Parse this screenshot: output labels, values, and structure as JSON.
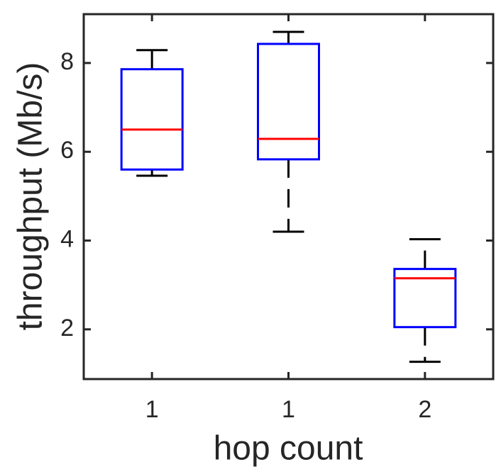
{
  "chart_data": {
    "type": "box",
    "xlabel": "hop count",
    "ylabel": "throughput (Mb/s)",
    "categories": [
      "1",
      "1",
      "2"
    ],
    "boxes": [
      {
        "min": 5.46,
        "q1": 5.6,
        "median": 6.5,
        "q3": 7.86,
        "max": 8.29
      },
      {
        "min": 4.2,
        "q1": 5.83,
        "median": 6.29,
        "q3": 8.43,
        "max": 8.7
      },
      {
        "min": 1.27,
        "q1": 2.05,
        "median": 3.15,
        "q3": 3.36,
        "max": 4.03
      }
    ],
    "box_color": "#0000ff",
    "median_color": "#ff0000",
    "whisker_color": "#000000",
    "ylim": [
      0.88,
      9.1
    ],
    "yticks": [
      2,
      4,
      6,
      8
    ]
  }
}
